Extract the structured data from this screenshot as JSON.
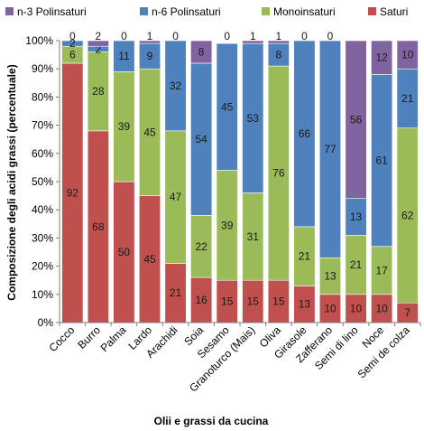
{
  "chart_data": {
    "type": "bar",
    "stacked": true,
    "percent": true,
    "categories": [
      "Cocco",
      "Burro",
      "Palma",
      "Lardo",
      "Arachidi",
      "Soia",
      "Sesamo",
      "Granoturco (Mais)",
      "Oliva",
      "Girasole",
      "Zafferano",
      "Semi di lino",
      "Noce",
      "Semi de colza"
    ],
    "series": [
      {
        "name": "Saturi",
        "color": "#C0504D",
        "values": [
          92,
          68,
          50,
          45,
          21,
          16,
          15,
          15,
          15,
          13,
          10,
          10,
          10,
          7
        ]
      },
      {
        "name": "Monoinsaturi",
        "color": "#9BBB59",
        "values": [
          6,
          28,
          39,
          45,
          47,
          22,
          39,
          31,
          76,
          21,
          13,
          21,
          17,
          62
        ]
      },
      {
        "name": "n-6 Polinsaturi",
        "color": "#4F81BD",
        "values": [
          2,
          2,
          11,
          9,
          32,
          54,
          45,
          53,
          8,
          66,
          77,
          13,
          61,
          21
        ]
      },
      {
        "name": "n-3 Polinsaturi",
        "color": "#8064A2",
        "values": [
          0,
          2,
          0,
          1,
          0,
          8,
          0,
          1,
          1,
          0,
          0,
          56,
          12,
          10
        ]
      }
    ],
    "legend_order": [
      "n-3 Polinsaturi",
      "n-6 Polinsaturi",
      "Monoinsaturi",
      "Saturi"
    ],
    "legend_position": "top",
    "xlabel": "Olii e grassi  da cucina",
    "ylabel": "Composizione degli acidi grassi (percentuale)",
    "ylim": [
      0,
      100
    ],
    "yticks": [
      "0%",
      "10%",
      "20%",
      "30%",
      "40%",
      "50%",
      "60%",
      "70%",
      "80%",
      "90%",
      "100%"
    ],
    "grid": false
  }
}
